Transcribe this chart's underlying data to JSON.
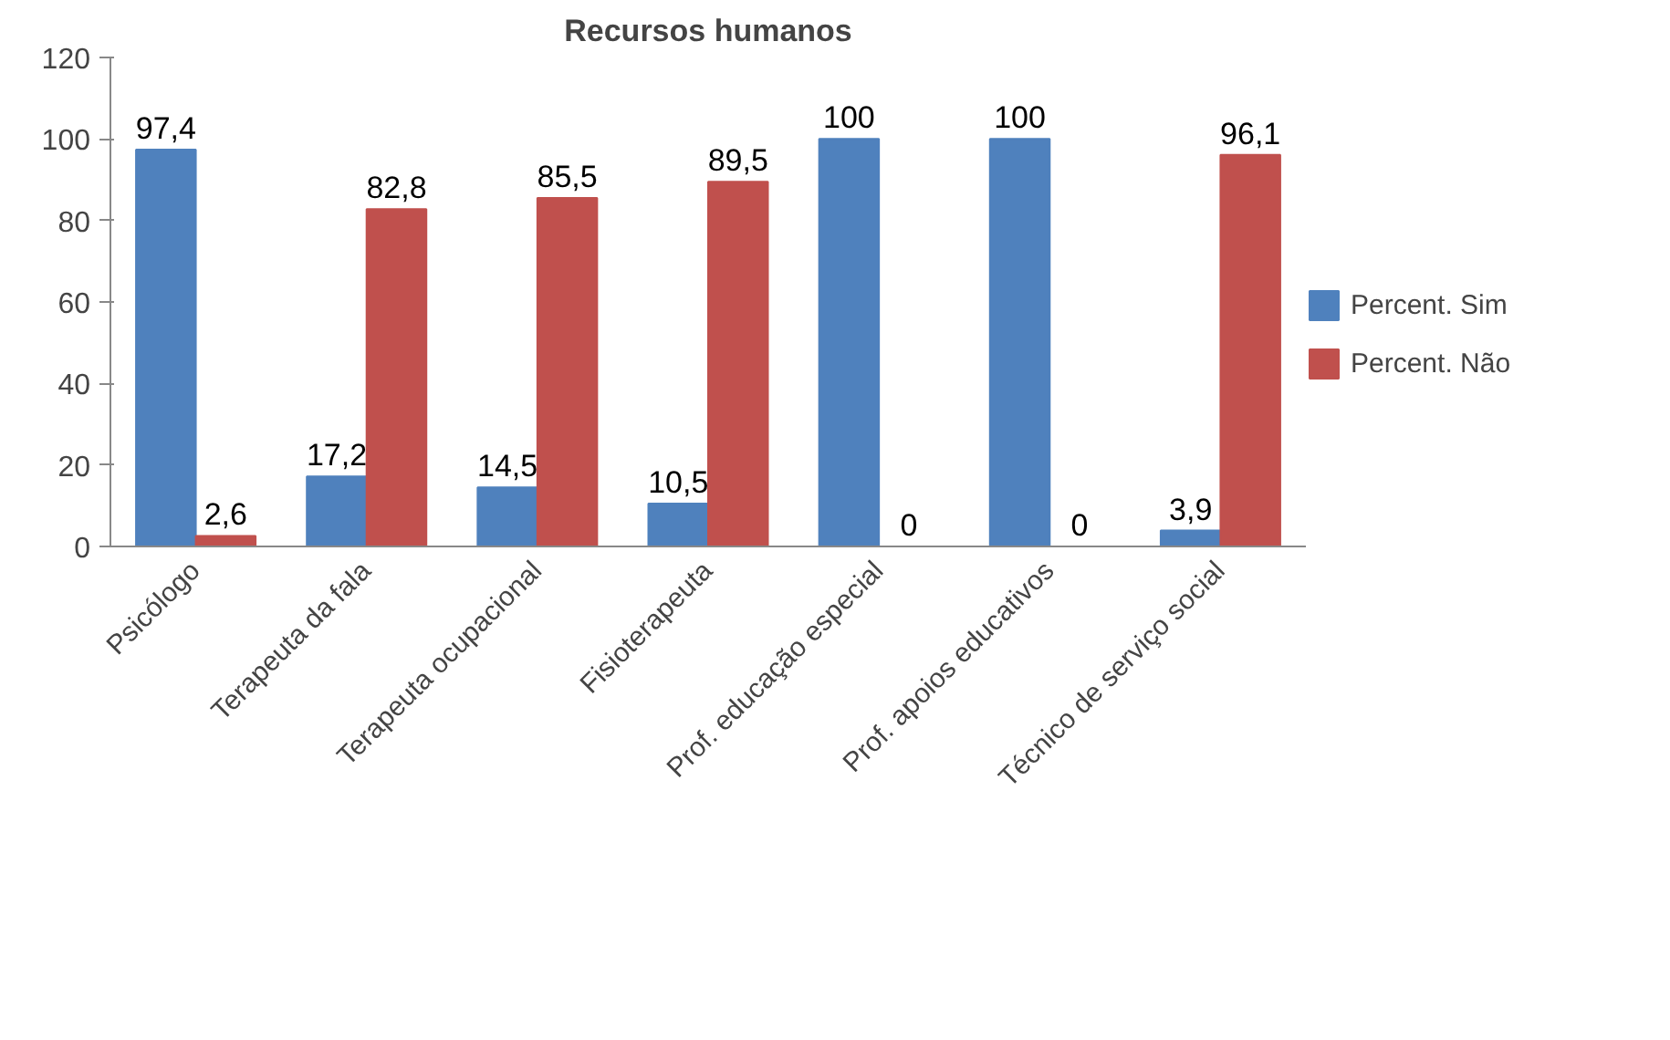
{
  "chart_data": {
    "type": "bar",
    "title": "Recursos humanos",
    "categories": [
      "Psicólogo",
      "Terapeuta da fala",
      "Terapeuta ocupacional",
      "Fisioterapeuta",
      "Prof. educação especial",
      "Prof. apoios educativos",
      "Técnico de serviço social"
    ],
    "series": [
      {
        "name": "Percent. Sim",
        "color": "#4f81bd",
        "values": [
          97.4,
          17.2,
          14.5,
          10.5,
          100,
          100,
          3.9
        ],
        "value_labels": [
          "97,4",
          "17,2",
          "14,5",
          "10,5",
          "100",
          "100",
          "3,9"
        ]
      },
      {
        "name": "Percent. Não",
        "color": "#c0504d",
        "values": [
          2.6,
          82.8,
          85.5,
          89.5,
          0,
          0,
          96.1
        ],
        "value_labels": [
          "2,6",
          "82,8",
          "85,5",
          "89,5",
          "0",
          "0",
          "96,1"
        ]
      }
    ],
    "ylim": [
      0,
      120
    ],
    "yticks": [
      0,
      20,
      40,
      60,
      80,
      100,
      120
    ],
    "grid": false,
    "legend": "right"
  }
}
